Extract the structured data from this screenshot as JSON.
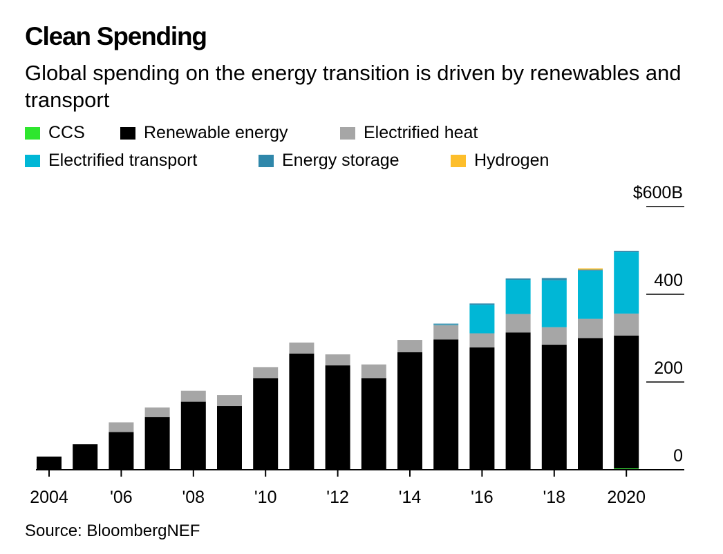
{
  "header": {
    "title": "Clean Spending",
    "subtitle": "Global spending on the energy transition is driven by renewables and transport"
  },
  "legend": [
    {
      "label": "CCS",
      "color": "#2ee62e"
    },
    {
      "label": "Renewable energy",
      "color": "#000000"
    },
    {
      "label": "Electrified heat",
      "color": "#a6a6a6"
    },
    {
      "label": "Electrified transport",
      "color": "#00b7d6"
    },
    {
      "label": "Energy storage",
      "color": "#2f87aa"
    },
    {
      "label": "Hydrogen",
      "color": "#fdbe2b"
    }
  ],
  "footer": {
    "source": "Source: BloombergNEF"
  },
  "chart_data": {
    "type": "bar",
    "stacked": true,
    "categories": [
      "2004",
      "2005",
      "2006",
      "2007",
      "2008",
      "2009",
      "2010",
      "2011",
      "2012",
      "2013",
      "2014",
      "2015",
      "2016",
      "2017",
      "2018",
      "2019",
      "2020"
    ],
    "x_tick_labels": [
      "2004",
      "'06",
      "'08",
      "'10",
      "'12",
      "'14",
      "'16",
      "'18",
      "2020"
    ],
    "x_tick_categories": [
      "2004",
      "2006",
      "2008",
      "2010",
      "2012",
      "2014",
      "2016",
      "2018",
      "2020"
    ],
    "y_tick_values": [
      0,
      200,
      400,
      600
    ],
    "y_tick_labels": [
      "0",
      "200",
      "400",
      "$600B"
    ],
    "ylim": [
      0,
      600
    ],
    "grid": false,
    "legend_position": "top",
    "series": [
      {
        "name": "CCS",
        "color": "#2ee62e",
        "values": [
          0,
          0,
          0,
          0,
          0,
          0,
          0,
          0,
          0,
          0,
          0,
          0,
          0,
          0,
          0,
          0,
          3
        ]
      },
      {
        "name": "Renewable energy",
        "color": "#000000",
        "values": [
          30,
          58,
          86,
          120,
          155,
          145,
          209,
          265,
          238,
          209,
          268,
          297,
          279,
          313,
          285,
          300,
          303
        ]
      },
      {
        "name": "Electrified heat",
        "color": "#a6a6a6",
        "values": [
          0,
          0,
          22,
          22,
          25,
          25,
          25,
          25,
          25,
          31,
          28,
          33,
          32,
          42,
          40,
          44,
          50
        ]
      },
      {
        "name": "Electrified transport",
        "color": "#00b7d6",
        "values": [
          0,
          0,
          0,
          0,
          0,
          0,
          0,
          0,
          0,
          0,
          0,
          1,
          65,
          78,
          107,
          110,
          140
        ]
      },
      {
        "name": "Energy storage",
        "color": "#2f87aa",
        "values": [
          0,
          0,
          0,
          0,
          0,
          0,
          0,
          0,
          0,
          0,
          0,
          2,
          3,
          3,
          5,
          2,
          3
        ]
      },
      {
        "name": "Hydrogen",
        "color": "#fdbe2b",
        "values": [
          0,
          0,
          0,
          0,
          0,
          0,
          0,
          0,
          0,
          0,
          0,
          0,
          0,
          0,
          0,
          3,
          0
        ]
      }
    ]
  }
}
